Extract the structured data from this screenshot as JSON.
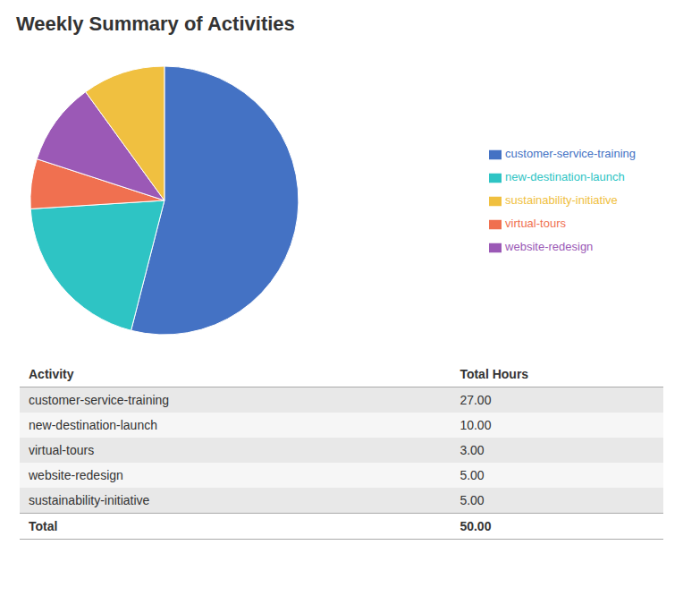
{
  "chart_data": {
    "type": "pie",
    "title": "Weekly Summary of Activities",
    "categories": [
      "customer-service-training",
      "new-destination-launch",
      "virtual-tours",
      "website-redesign",
      "sustainability-initiative"
    ],
    "values": [
      27,
      10,
      3,
      5,
      5
    ],
    "colors": [
      "#4472c4",
      "#2ec4c4",
      "#f07050",
      "#9b59b6",
      "#f0c040"
    ],
    "legend": "right",
    "table": {
      "headers": [
        "Activity",
        "Total Hours"
      ],
      "rows": [
        [
          "customer-service-training",
          "27.00"
        ],
        [
          "new-destination-launch",
          "10.00"
        ],
        [
          "virtual-tours",
          "3.00"
        ],
        [
          "website-redesign",
          "5.00"
        ],
        [
          "sustainability-initiative",
          "5.00"
        ]
      ],
      "total": [
        "Total",
        "50.00"
      ]
    }
  }
}
